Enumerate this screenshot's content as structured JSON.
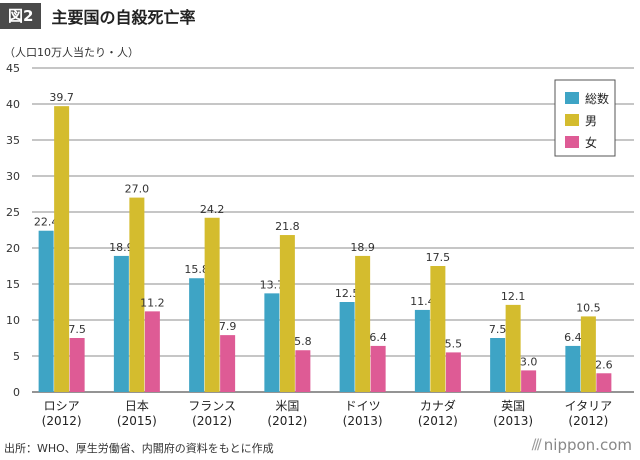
{
  "header": {
    "badge": "図2",
    "title": "主要国の自殺死亡率"
  },
  "unit_label": "（人口10万人当たり・人）",
  "source": "出所：WHO、厚生労働省、内閣府の資料をもとに作成",
  "brand": "nippon.com",
  "chart_data": {
    "type": "bar",
    "categories": [
      [
        "ロシア",
        "(2012)"
      ],
      [
        "日本",
        "(2015)"
      ],
      [
        "フランス",
        "(2012)"
      ],
      [
        "米国",
        "(2012)"
      ],
      [
        "ドイツ",
        "(2013)"
      ],
      [
        "カナダ",
        "(2012)"
      ],
      [
        "英国",
        "(2013)"
      ],
      [
        "イタリア",
        "(2012)"
      ]
    ],
    "series": [
      {
        "name": "総数",
        "color": "#3ea4c5",
        "values": [
          22.4,
          18.9,
          15.8,
          13.7,
          12.5,
          11.4,
          7.5,
          6.4
        ]
      },
      {
        "name": "男",
        "color": "#d4bc2e",
        "values": [
          39.7,
          27.0,
          24.2,
          21.8,
          18.9,
          17.5,
          12.1,
          10.5
        ]
      },
      {
        "name": "女",
        "color": "#de5b95",
        "values": [
          7.5,
          11.2,
          7.9,
          5.8,
          6.4,
          5.5,
          3.0,
          2.6
        ]
      }
    ],
    "value_labels": [
      [
        "22.4",
        "18.9",
        "15.8",
        "13.7",
        "12.5",
        "11.4",
        "7.5",
        "6.4"
      ],
      [
        "39.7",
        "27.0",
        "24.2",
        "21.8",
        "18.9",
        "17.5",
        "12.1",
        "10.5"
      ],
      [
        "7.5",
        "11.2",
        "7.9",
        "5.8",
        "6.4",
        "5.5",
        "3.0",
        "2.6"
      ]
    ],
    "ylim": [
      0,
      45
    ],
    "yticks": [
      0,
      5,
      10,
      15,
      20,
      25,
      30,
      35,
      40,
      45
    ],
    "grid": true,
    "legend_position": "top-right"
  }
}
